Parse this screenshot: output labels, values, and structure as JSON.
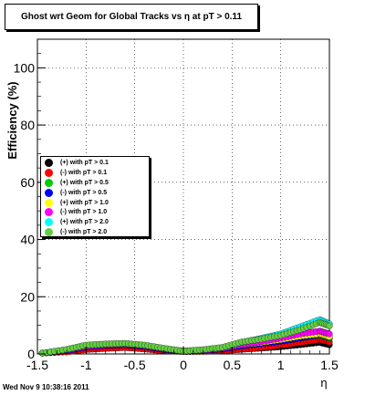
{
  "chart_data": {
    "type": "scatter",
    "title": "Ghost wrt Geom for Global Tracks vs    η at pT > 0.11",
    "xlabel": "η",
    "ylabel": "Efficiency (%)",
    "xlim": [
      -1.5,
      1.5
    ],
    "ylim": [
      0,
      110
    ],
    "xticks": [
      "-1.5",
      "-1",
      "-0.5",
      "0",
      "0.5",
      "1",
      "1.5"
    ],
    "yticks": [
      "0",
      "20",
      "40",
      "60",
      "80",
      "100"
    ],
    "grid": true,
    "legend_position": "left",
    "timestamp": "Wed Nov  9 10:38:16 2011",
    "series": [
      {
        "name": "(+) with pT > 0.1",
        "color": "#000000",
        "x": [
          -1.45,
          -1.2,
          -1.0,
          -0.8,
          -0.6,
          -0.4,
          -0.2,
          0.0,
          0.2,
          0.4,
          0.6,
          0.8,
          1.0,
          1.2,
          1.4,
          1.5
        ],
        "y": [
          0.3,
          0.8,
          1.6,
          2.0,
          2.3,
          1.8,
          1.2,
          0.8,
          0.9,
          1.2,
          1.6,
          2.0,
          2.5,
          3.2,
          4.0,
          3.2
        ]
      },
      {
        "name": "(-) with pT > 0.1",
        "color": "#ff0000",
        "x": [
          -1.45,
          -1.2,
          -1.0,
          -0.8,
          -0.6,
          -0.4,
          -0.2,
          0.0,
          0.2,
          0.4,
          0.6,
          0.8,
          1.0,
          1.2,
          1.4,
          1.5
        ],
        "y": [
          0.3,
          0.7,
          1.5,
          1.9,
          2.2,
          1.7,
          1.1,
          0.9,
          0.9,
          1.1,
          1.6,
          2.2,
          3.0,
          4.0,
          5.0,
          4.2
        ]
      },
      {
        "name": "(+) with pT > 0.5",
        "color": "#00cc00",
        "x": [
          -1.45,
          -1.2,
          -1.0,
          -0.8,
          -0.6,
          -0.4,
          -0.2,
          0.0,
          0.2,
          0.4,
          0.6,
          0.8,
          1.0,
          1.2,
          1.4,
          1.5
        ],
        "y": [
          0.3,
          1.2,
          2.5,
          3.0,
          3.3,
          2.7,
          1.6,
          1.0,
          1.2,
          1.8,
          3.0,
          3.8,
          4.5,
          5.5,
          6.5,
          5.5
        ]
      },
      {
        "name": "(-) with pT > 0.5",
        "color": "#0000ff",
        "x": [
          -1.45,
          -1.2,
          -1.0,
          -0.8,
          -0.6,
          -0.4,
          -0.2,
          0.0,
          0.2,
          0.4,
          0.6,
          0.8,
          1.0,
          1.2,
          1.4,
          1.5
        ],
        "y": [
          0.3,
          1.1,
          2.4,
          2.9,
          3.2,
          2.6,
          1.5,
          1.0,
          1.1,
          1.7,
          2.8,
          3.6,
          4.4,
          5.6,
          6.8,
          5.8
        ]
      },
      {
        "name": "(+) with pT > 1.0",
        "color": "#ffff00",
        "x": [
          -1.45,
          -1.2,
          -1.0,
          -0.8,
          -0.6,
          -0.4,
          -0.2,
          0.0,
          0.2,
          0.4,
          0.6,
          0.8,
          1.0,
          1.2,
          1.4,
          1.5
        ],
        "y": [
          0.3,
          1.4,
          2.8,
          3.2,
          3.5,
          2.9,
          1.8,
          1.0,
          1.3,
          2.0,
          3.2,
          4.0,
          5.0,
          6.2,
          7.0,
          6.0
        ]
      },
      {
        "name": "(-) with pT > 1.0",
        "color": "#ff00ff",
        "x": [
          -1.45,
          -1.2,
          -1.0,
          -0.8,
          -0.6,
          -0.4,
          -0.2,
          0.0,
          0.2,
          0.4,
          0.6,
          0.8,
          1.0,
          1.2,
          1.4,
          1.5
        ],
        "y": [
          0.3,
          1.3,
          2.6,
          3.1,
          3.4,
          2.8,
          1.7,
          1.0,
          1.2,
          1.9,
          3.3,
          4.3,
          5.5,
          7.0,
          8.0,
          7.0
        ]
      },
      {
        "name": "(+) with pT > 2.0",
        "color": "#00ffff",
        "x": [
          -1.45,
          -1.2,
          -1.0,
          -0.8,
          -0.6,
          -0.4,
          -0.2,
          0.0,
          0.2,
          0.4,
          0.6,
          0.8,
          1.0,
          1.2,
          1.4,
          1.5
        ],
        "y": [
          0.3,
          1.5,
          3.0,
          3.4,
          3.6,
          3.0,
          1.9,
          1.0,
          1.4,
          2.2,
          4.0,
          5.5,
          7.0,
          9.5,
          12.0,
          10.5
        ]
      },
      {
        "name": "(-) with pT > 2.0",
        "color": "#66cc44",
        "x": [
          -1.45,
          -1.2,
          -1.0,
          -0.8,
          -0.6,
          -0.4,
          -0.2,
          0.0,
          0.2,
          0.4,
          0.6,
          0.8,
          1.0,
          1.2,
          1.4,
          1.5
        ],
        "y": [
          0.3,
          1.6,
          3.1,
          3.5,
          3.7,
          3.1,
          2.0,
          1.0,
          1.5,
          2.3,
          4.2,
          5.2,
          6.5,
          8.5,
          11.0,
          9.8
        ]
      }
    ]
  }
}
